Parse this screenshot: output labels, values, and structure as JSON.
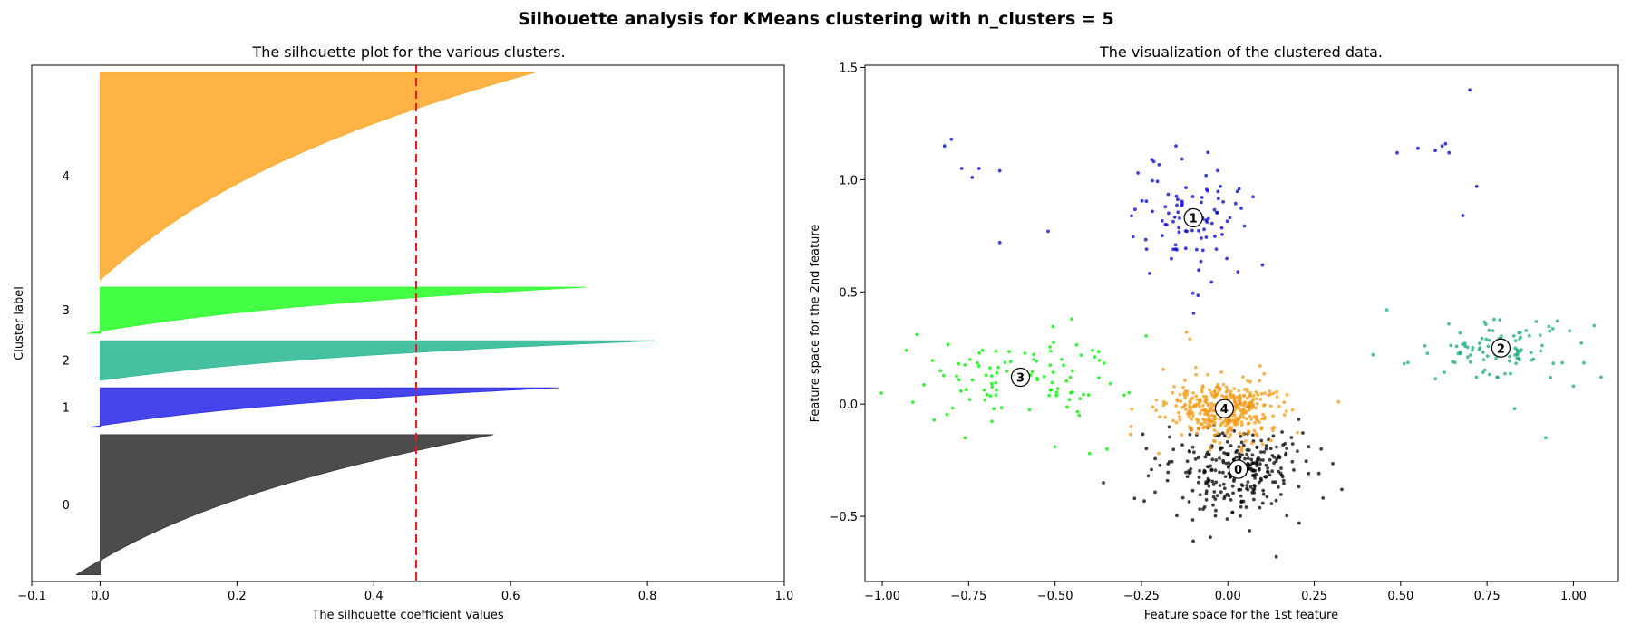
{
  "figure": {
    "title": "Silhouette analysis for KMeans clustering with n_clusters = 5"
  },
  "chart_data": [
    {
      "type": "area",
      "title": "The silhouette plot for the various clusters.",
      "xlabel": "The silhouette coefficient values",
      "ylabel": "Cluster label",
      "xlim": [
        -0.1,
        1.0
      ],
      "xticks": [
        -0.1,
        0.0,
        0.2,
        0.4,
        0.6,
        0.8,
        1.0
      ],
      "xtick_labels": [
        "−0.1",
        "0.0",
        "0.2",
        "0.4",
        "0.6",
        "0.8",
        "1.0"
      ],
      "grid": false,
      "average_silhouette": 0.462,
      "average_line_color": "#e41a1c",
      "clusters": [
        {
          "label": "0",
          "size": 210,
          "color": "#333333",
          "min": -0.035,
          "max": 0.575
        },
        {
          "label": "1",
          "size": 60,
          "color": "#2b2be8",
          "min": -0.015,
          "max": 0.67
        },
        {
          "label": "2",
          "size": 60,
          "color": "#2bb894",
          "min": 0.0,
          "max": 0.81
        },
        {
          "label": "3",
          "size": 70,
          "color": "#2bff2b",
          "min": -0.018,
          "max": 0.71
        },
        {
          "label": "4",
          "size": 310,
          "color": "#ffa92b",
          "min": 0.0,
          "max": 0.635
        }
      ]
    },
    {
      "type": "scatter",
      "title": "The visualization of the clustered data.",
      "xlabel": "Feature space for the 1st feature",
      "ylabel": "Feature space for the 2nd feature",
      "xlim": [
        -1.05,
        1.13
      ],
      "ylim": [
        -0.79,
        1.51
      ],
      "xticks": [
        -1.0,
        -0.75,
        -0.5,
        -0.25,
        0.0,
        0.25,
        0.5,
        0.75,
        1.0
      ],
      "xtick_labels": [
        "−1.00",
        "−0.75",
        "−0.50",
        "−0.25",
        "0.00",
        "0.25",
        "0.50",
        "0.75",
        "1.00"
      ],
      "yticks": [
        -0.5,
        0.0,
        0.5,
        1.0,
        1.5
      ],
      "ytick_labels": [
        "−0.5",
        "0.0",
        "0.5",
        "1.0",
        "1.5"
      ],
      "grid": false,
      "clusters": [
        {
          "label": "0",
          "color": "#000000",
          "n": 300,
          "center": [
            0.03,
            -0.29
          ],
          "spread": [
            0.1,
            0.095
          ],
          "outliers": [
            [
              -0.1,
              -0.61
            ],
            [
              0.14,
              -0.68
            ],
            [
              0.33,
              -0.38
            ],
            [
              -0.36,
              -0.35
            ],
            [
              0.27,
              -0.2
            ],
            [
              -0.27,
              -0.42
            ]
          ]
        },
        {
          "label": "1",
          "color": "#0000cc",
          "n": 95,
          "center": [
            -0.1,
            0.83
          ],
          "spread": [
            0.075,
            0.14
          ],
          "outliers": [
            [
              -0.8,
              1.18
            ],
            [
              -0.82,
              1.15
            ],
            [
              -0.77,
              1.05
            ],
            [
              -0.72,
              1.05
            ],
            [
              -0.66,
              1.04
            ],
            [
              -0.74,
              1.01
            ],
            [
              -0.66,
              0.72
            ],
            [
              -0.52,
              0.77
            ],
            [
              0.49,
              1.12
            ],
            [
              0.55,
              1.14
            ],
            [
              0.6,
              1.13
            ],
            [
              0.62,
              1.15
            ],
            [
              0.63,
              1.16
            ],
            [
              0.64,
              1.12
            ],
            [
              0.7,
              1.4
            ],
            [
              0.72,
              0.97
            ],
            [
              0.68,
              0.84
            ],
            [
              0.1,
              0.62
            ],
            [
              -0.22,
              1.09
            ],
            [
              -0.26,
              1.03
            ]
          ]
        },
        {
          "label": "2",
          "color": "#1aaa7a",
          "n": 95,
          "center": [
            0.79,
            0.25
          ],
          "spread": [
            0.1,
            0.07
          ],
          "outliers": [
            [
              0.42,
              0.22
            ],
            [
              0.46,
              0.42
            ],
            [
              0.51,
              0.18
            ],
            [
              0.57,
              0.26
            ],
            [
              0.92,
              -0.15
            ],
            [
              1.0,
              0.08
            ],
            [
              1.06,
              0.35
            ],
            [
              1.08,
              0.12
            ],
            [
              0.83,
              -0.02
            ]
          ]
        },
        {
          "label": "3",
          "color": "#00ee00",
          "n": 95,
          "center": [
            -0.6,
            0.12
          ],
          "spread": [
            0.15,
            0.1
          ],
          "outliers": [
            [
              -0.9,
              0.31
            ],
            [
              -0.93,
              0.24
            ],
            [
              -0.85,
              -0.07
            ],
            [
              -0.76,
              -0.15
            ],
            [
              -0.5,
              -0.19
            ],
            [
              -0.4,
              -0.22
            ],
            [
              -0.35,
              -0.2
            ],
            [
              -0.43,
              -0.05
            ],
            [
              -0.3,
              0.04
            ]
          ]
        },
        {
          "label": "4",
          "color": "#f49a15",
          "n": 380,
          "center": [
            -0.01,
            -0.02
          ],
          "spread": [
            0.08,
            0.07
          ],
          "outliers": [
            [
              -0.12,
              0.32
            ],
            [
              -0.11,
              0.29
            ],
            [
              0.32,
              0.01
            ],
            [
              -0.28,
              -0.1
            ],
            [
              -0.2,
              -0.22
            ]
          ]
        }
      ]
    }
  ]
}
